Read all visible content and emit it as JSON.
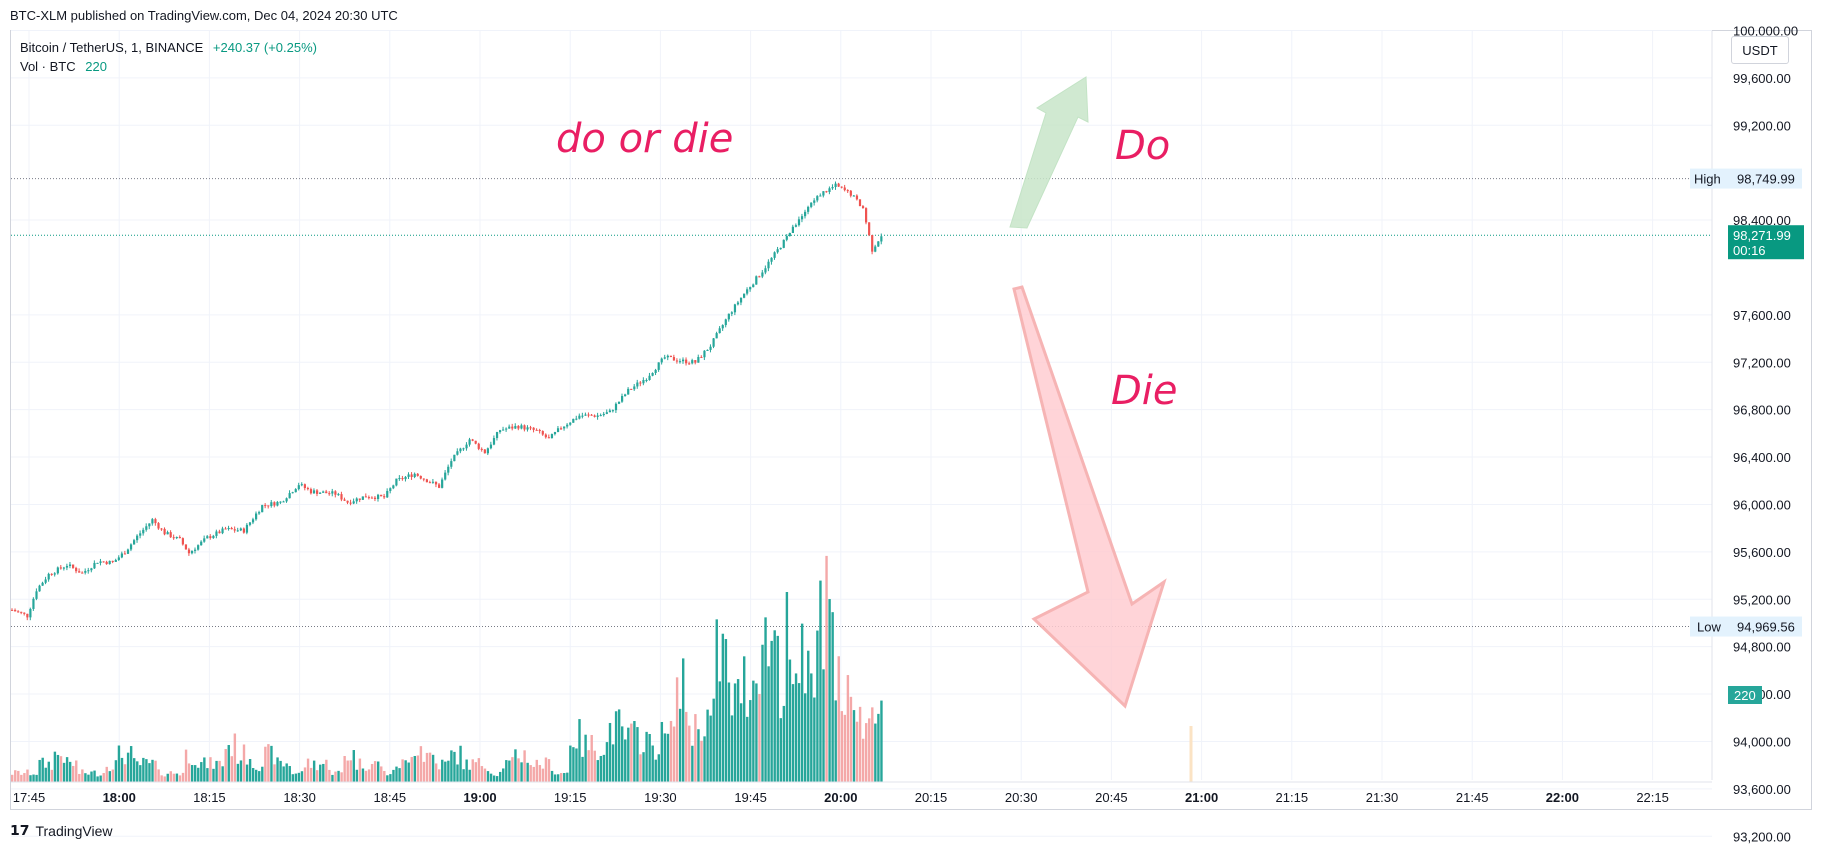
{
  "header": {
    "published": "BTC-XLM published on TradingView.com, Dec 04, 2024 20:30 UTC"
  },
  "legend": {
    "symbol": "Bitcoin / TetherUS, 1, BINANCE",
    "change": "+240.37 (+0.25%)",
    "vol_label": "Vol · BTC",
    "vol_value": "220"
  },
  "currency_button": "USDT",
  "footer": {
    "brand": "TradingView"
  },
  "annotations": {
    "title_text": "do or die",
    "up_text": "Do",
    "down_text": "Die"
  },
  "markers": {
    "high_label": "High",
    "high_value": "98,749.99",
    "low_label": "Low",
    "low_value": "94,969.56",
    "last_price": "98,271.99",
    "countdown": "00:16",
    "volume_tag": "220"
  },
  "colors": {
    "up": "#26a69a",
    "down": "#ef5350",
    "vol_up": "#26a69a",
    "vol_down": "#f4a8a8",
    "annotation": "#e91e63",
    "arrow_up_fill": "#c8e6c9",
    "arrow_down_fill": "#ffcdd2"
  },
  "chart_data": {
    "type": "candlestick",
    "symbol": "BTCUSDT",
    "interval": "1m",
    "y_axis_ticks": [
      "100,000.00",
      "99,600.00",
      "99,200.00",
      "98,400.00",
      "97,600.00",
      "97,200.00",
      "96,800.00",
      "96,400.00",
      "96,000.00",
      "95,600.00",
      "95,200.00",
      "94,800.00",
      "94,400.00",
      "94,000.00",
      "93,600.00",
      "93,200.00"
    ],
    "x_axis_ticks": [
      "17:45",
      "18:00",
      "18:15",
      "18:30",
      "18:45",
      "19:00",
      "19:15",
      "19:30",
      "19:45",
      "20:00",
      "20:15",
      "20:30",
      "20:45",
      "21:00",
      "21:15",
      "21:30",
      "21:45",
      "22:00",
      "22:15"
    ],
    "x_tick_bold": [
      "18:00",
      "19:00",
      "20:00",
      "21:00",
      "22:00"
    ],
    "ylim": [
      93000,
      100200
    ],
    "high": 98749.99,
    "low": 94969.56,
    "last": 98271.99,
    "close_path": [
      [
        0,
        95110
      ],
      [
        5,
        95060
      ],
      [
        8,
        95280
      ],
      [
        12,
        95410
      ],
      [
        18,
        95490
      ],
      [
        23,
        95420
      ],
      [
        28,
        95520
      ],
      [
        33,
        95510
      ],
      [
        37,
        95600
      ],
      [
        41,
        95730
      ],
      [
        46,
        95870
      ],
      [
        50,
        95760
      ],
      [
        55,
        95700
      ],
      [
        58,
        95590
      ],
      [
        64,
        95720
      ],
      [
        70,
        95790
      ],
      [
        76,
        95780
      ],
      [
        82,
        95990
      ],
      [
        88,
        96020
      ],
      [
        94,
        96170
      ],
      [
        98,
        96110
      ],
      [
        106,
        96090
      ],
      [
        110,
        96020
      ],
      [
        116,
        96070
      ],
      [
        122,
        96060
      ],
      [
        126,
        96200
      ],
      [
        132,
        96260
      ],
      [
        140,
        96150
      ],
      [
        144,
        96370
      ],
      [
        150,
        96550
      ],
      [
        155,
        96440
      ],
      [
        160,
        96630
      ],
      [
        166,
        96660
      ],
      [
        172,
        96620
      ],
      [
        176,
        96550
      ],
      [
        180,
        96650
      ],
      [
        186,
        96750
      ],
      [
        192,
        96750
      ],
      [
        196,
        96780
      ],
      [
        202,
        96960
      ],
      [
        208,
        97070
      ],
      [
        214,
        97240
      ],
      [
        220,
        97210
      ],
      [
        224,
        97200
      ],
      [
        229,
        97340
      ],
      [
        235,
        97600
      ],
      [
        240,
        97780
      ],
      [
        246,
        97970
      ],
      [
        250,
        98110
      ],
      [
        255,
        98290
      ],
      [
        260,
        98470
      ],
      [
        265,
        98620
      ],
      [
        270,
        98690
      ],
      [
        275,
        98620
      ],
      [
        279,
        98500
      ],
      [
        282,
        98150
      ],
      [
        285,
        98272
      ]
    ],
    "volume": {
      "pattern": [
        1,
        1,
        2,
        3,
        2,
        1,
        1,
        2,
        3,
        2,
        2,
        1,
        1,
        3,
        2,
        2,
        4,
        3,
        2,
        3,
        2,
        1,
        2,
        2,
        1,
        3,
        2,
        2,
        1,
        2,
        4,
        3,
        2,
        3,
        2,
        2,
        1,
        2,
        3,
        2,
        2,
        1,
        5,
        4,
        4,
        6,
        5,
        5,
        4,
        5,
        10,
        6,
        7,
        14,
        9,
        11,
        15,
        16,
        11,
        16,
        14,
        18,
        12,
        11,
        6,
        10
      ],
      "peaks": {
        "254": 21,
        "257": 12,
        "262": 12,
        "285": 9
      },
      "max_scale": 21
    }
  }
}
